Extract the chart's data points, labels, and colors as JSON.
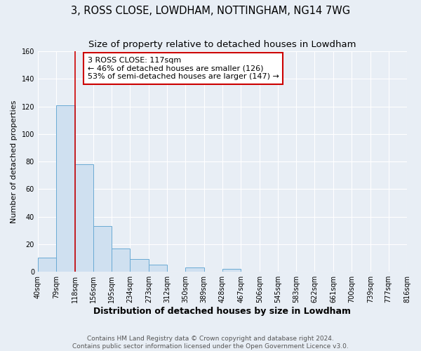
{
  "title": "3, ROSS CLOSE, LOWDHAM, NOTTINGHAM, NG14 7WG",
  "subtitle": "Size of property relative to detached houses in Lowdham",
  "xlabel": "Distribution of detached houses by size in Lowdham",
  "ylabel": "Number of detached properties",
  "bin_edges": [
    40,
    79,
    118,
    156,
    195,
    234,
    273,
    312,
    350,
    389,
    428,
    467,
    506,
    545,
    583,
    622,
    661,
    700,
    739,
    777,
    816
  ],
  "bin_counts": [
    10,
    121,
    78,
    33,
    17,
    9,
    5,
    0,
    3,
    0,
    2,
    0,
    0,
    0,
    0,
    0,
    0,
    0,
    0,
    0
  ],
  "bar_color": "#cfe0f0",
  "bar_edge_color": "#6aaad4",
  "red_line_x": 118,
  "annotation_text": "3 ROSS CLOSE: 117sqm\n← 46% of detached houses are smaller (126)\n53% of semi-detached houses are larger (147) →",
  "annotation_box_color": "#ffffff",
  "annotation_box_edge_color": "#cc0000",
  "ylim": [
    0,
    160
  ],
  "yticks": [
    0,
    20,
    40,
    60,
    80,
    100,
    120,
    140,
    160
  ],
  "tick_labels": [
    "40sqm",
    "79sqm",
    "118sqm",
    "156sqm",
    "195sqm",
    "234sqm",
    "273sqm",
    "312sqm",
    "350sqm",
    "389sqm",
    "428sqm",
    "467sqm",
    "506sqm",
    "545sqm",
    "583sqm",
    "622sqm",
    "661sqm",
    "700sqm",
    "739sqm",
    "777sqm",
    "816sqm"
  ],
  "footer_line1": "Contains HM Land Registry data © Crown copyright and database right 2024.",
  "footer_line2": "Contains public sector information licensed under the Open Government Licence v3.0.",
  "background_color": "#e8eef5",
  "plot_bg_color": "#e8eef5",
  "grid_color": "#ffffff",
  "title_fontsize": 10.5,
  "subtitle_fontsize": 9.5,
  "xlabel_fontsize": 9,
  "ylabel_fontsize": 8,
  "tick_fontsize": 7,
  "annotation_fontsize": 8,
  "footer_fontsize": 6.5
}
